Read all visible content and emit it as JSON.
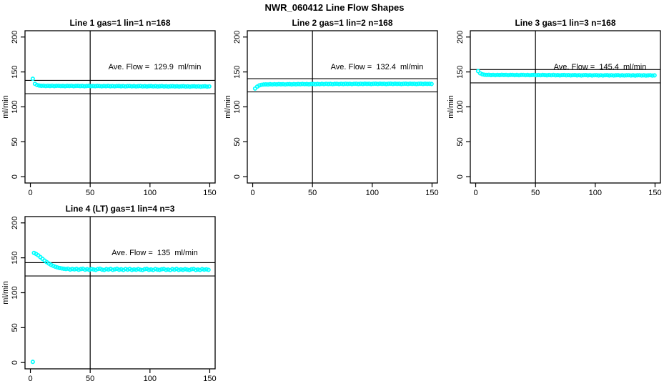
{
  "figure": {
    "title": "NWR_060412  Line Flow Shapes",
    "point_color": "#00FFFF",
    "axis_color": "#000000",
    "background": "#FFFFFF"
  },
  "chart_data": [
    {
      "type": "scatter",
      "title": "Line 1 gas=1 lin=1 n=168",
      "annotation": "Ave. Flow =  129.9  ml/min",
      "ave_flow": 129.9,
      "xlabel": "",
      "ylabel": "ml/min",
      "xlim": [
        0,
        150
      ],
      "ylim": [
        0,
        200
      ],
      "xticks": [
        0,
        50,
        100,
        150
      ],
      "yticks": [
        0,
        50,
        100,
        150,
        200
      ],
      "vline_x": 50,
      "ref_lines": [
        118.9,
        137.9
      ],
      "x0": 2,
      "dx": 1.8,
      "y": [
        140.3,
        133.0,
        131.2,
        130.5,
        130.1,
        130.3,
        129.8,
        130.2,
        129.9,
        130.3,
        129.7,
        130.1,
        130.2,
        129.8,
        130.0,
        129.6,
        130.1,
        129.9,
        130.2,
        129.6,
        130.0,
        130.1,
        129.7,
        130.0,
        129.5,
        129.9,
        130.1,
        129.6,
        129.9,
        129.6,
        130.0,
        129.8,
        129.5,
        129.9,
        129.6,
        130.0,
        129.5,
        129.8,
        129.4,
        129.8,
        129.9,
        129.5,
        129.8,
        129.3,
        129.7,
        129.8,
        129.4,
        129.7,
        129.3,
        129.6,
        129.8,
        129.3,
        129.6,
        129.2,
        129.6,
        129.7,
        129.3,
        129.6,
        129.2,
        129.5,
        129.7,
        129.2,
        129.5,
        129.1,
        129.5,
        129.6,
        129.2,
        129.5,
        129.1,
        129.4,
        129.6,
        129.1,
        129.4,
        129.0,
        129.4,
        129.5,
        129.1,
        129.4,
        129.0,
        129.3,
        129.5,
        129.0,
        129.3
      ],
      "extra_points": []
    },
    {
      "type": "scatter",
      "title": "Line 2 gas=1 lin=2 n=168",
      "annotation": "Ave. Flow =  132.4  ml/min",
      "ave_flow": 132.4,
      "xlabel": "",
      "ylabel": "ml/min",
      "xlim": [
        0,
        150
      ],
      "ylim": [
        0,
        200
      ],
      "xticks": [
        0,
        50,
        100,
        150
      ],
      "yticks": [
        0,
        50,
        100,
        150,
        200
      ],
      "vline_x": 50,
      "ref_lines": [
        121.4,
        140.4
      ],
      "x0": 2,
      "dx": 1.8,
      "y": [
        126.2,
        129.0,
        130.8,
        131.6,
        132.0,
        132.2,
        132.0,
        132.4,
        132.1,
        132.5,
        132.2,
        132.6,
        132.3,
        132.5,
        132.1,
        132.5,
        132.6,
        132.2,
        132.6,
        132.3,
        132.7,
        132.4,
        132.8,
        132.5,
        132.7,
        132.3,
        132.7,
        132.8,
        132.4,
        132.8,
        132.5,
        132.9,
        132.6,
        133.0,
        132.7,
        132.9,
        132.5,
        132.9,
        133.0,
        132.6,
        133.0,
        132.7,
        133.1,
        132.8,
        133.0,
        132.6,
        133.0,
        133.1,
        132.7,
        133.1,
        132.8,
        133.2,
        132.9,
        133.1,
        132.7,
        133.1,
        133.2,
        132.8,
        133.2,
        132.9,
        133.1,
        132.7,
        133.1,
        133.2,
        132.8,
        133.2,
        132.9,
        133.1,
        132.7,
        133.1,
        133.2,
        132.8,
        133.2,
        132.9,
        133.1,
        132.7,
        133.1,
        133.2,
        132.8,
        133.2,
        132.9,
        133.1,
        132.8
      ],
      "extra_points": []
    },
    {
      "type": "scatter",
      "title": "Line 3 gas=1 lin=3 n=168",
      "annotation": "Ave. Flow =  145.4  ml/min",
      "ave_flow": 145.4,
      "xlabel": "",
      "ylabel": "ml/min",
      "xlim": [
        0,
        150
      ],
      "ylim": [
        0,
        200
      ],
      "xticks": [
        0,
        50,
        100,
        150
      ],
      "yticks": [
        0,
        50,
        100,
        150,
        200
      ],
      "vline_x": 50,
      "ref_lines": [
        134.4,
        153.4
      ],
      "x0": 2,
      "dx": 1.8,
      "y": [
        151.2,
        148.0,
        146.6,
        146.0,
        145.7,
        145.9,
        145.5,
        145.8,
        145.4,
        145.8,
        145.5,
        145.9,
        145.6,
        145.8,
        145.4,
        145.7,
        145.8,
        145.4,
        145.7,
        145.3,
        145.7,
        145.8,
        145.4,
        145.7,
        145.3,
        145.6,
        145.8,
        145.3,
        145.6,
        145.3,
        145.7,
        145.5,
        145.2,
        145.6,
        145.3,
        145.7,
        145.2,
        145.5,
        145.1,
        145.5,
        145.6,
        145.2,
        145.5,
        145.1,
        145.4,
        145.5,
        145.1,
        145.4,
        145.0,
        145.4,
        145.5,
        145.1,
        145.4,
        145.0,
        145.3,
        145.4,
        145.0,
        145.3,
        144.9,
        145.3,
        145.4,
        145.0,
        145.3,
        144.9,
        145.2,
        145.4,
        144.9,
        145.2,
        144.9,
        145.2,
        145.3,
        144.9,
        145.2,
        144.8,
        145.2,
        145.3,
        144.9,
        145.2,
        144.8,
        145.1,
        145.3,
        144.8,
        145.1
      ],
      "extra_points": []
    },
    {
      "type": "scatter",
      "title": "Line 4 (LT) gas=1 lin=4 n=3",
      "annotation": "Ave. Flow =  135  ml/min",
      "ave_flow": 135,
      "xlabel": "",
      "ylabel": "ml/min",
      "xlim": [
        0,
        150
      ],
      "ylim": [
        0,
        200
      ],
      "xticks": [
        0,
        50,
        100,
        150
      ],
      "yticks": [
        0,
        50,
        100,
        150,
        200
      ],
      "vline_x": 50,
      "ref_lines": [
        124.0,
        143.0
      ],
      "x0": 3,
      "dx": 1.78,
      "y": [
        157.0,
        155.5,
        153.5,
        151.0,
        148.5,
        146.0,
        143.8,
        141.8,
        140.0,
        138.5,
        137.2,
        136.2,
        135.4,
        134.8,
        134.3,
        133.9,
        134.4,
        133.2,
        134.0,
        133.4,
        134.1,
        132.9,
        133.8,
        134.3,
        133.0,
        133.7,
        132.8,
        134.0,
        133.3,
        132.7,
        133.9,
        134.4,
        133.1,
        132.6,
        133.8,
        133.2,
        134.1,
        132.8,
        133.5,
        134.2,
        132.9,
        133.6,
        132.6,
        133.9,
        133.1,
        134.0,
        132.7,
        133.4,
        132.9,
        133.8,
        133.0,
        132.5,
        133.7,
        134.1,
        132.8,
        133.3,
        132.6,
        133.9,
        133.1,
        132.7,
        133.6,
        134.0,
        132.8,
        133.2,
        132.5,
        133.8,
        133.0,
        134.1,
        132.7,
        133.4,
        132.8,
        133.7,
        133.1,
        132.5,
        133.6,
        134.0,
        132.7,
        133.2,
        132.6,
        133.8,
        133.0,
        133.5,
        132.8
      ],
      "extra_points": [
        [
          2,
          1
        ]
      ]
    }
  ]
}
